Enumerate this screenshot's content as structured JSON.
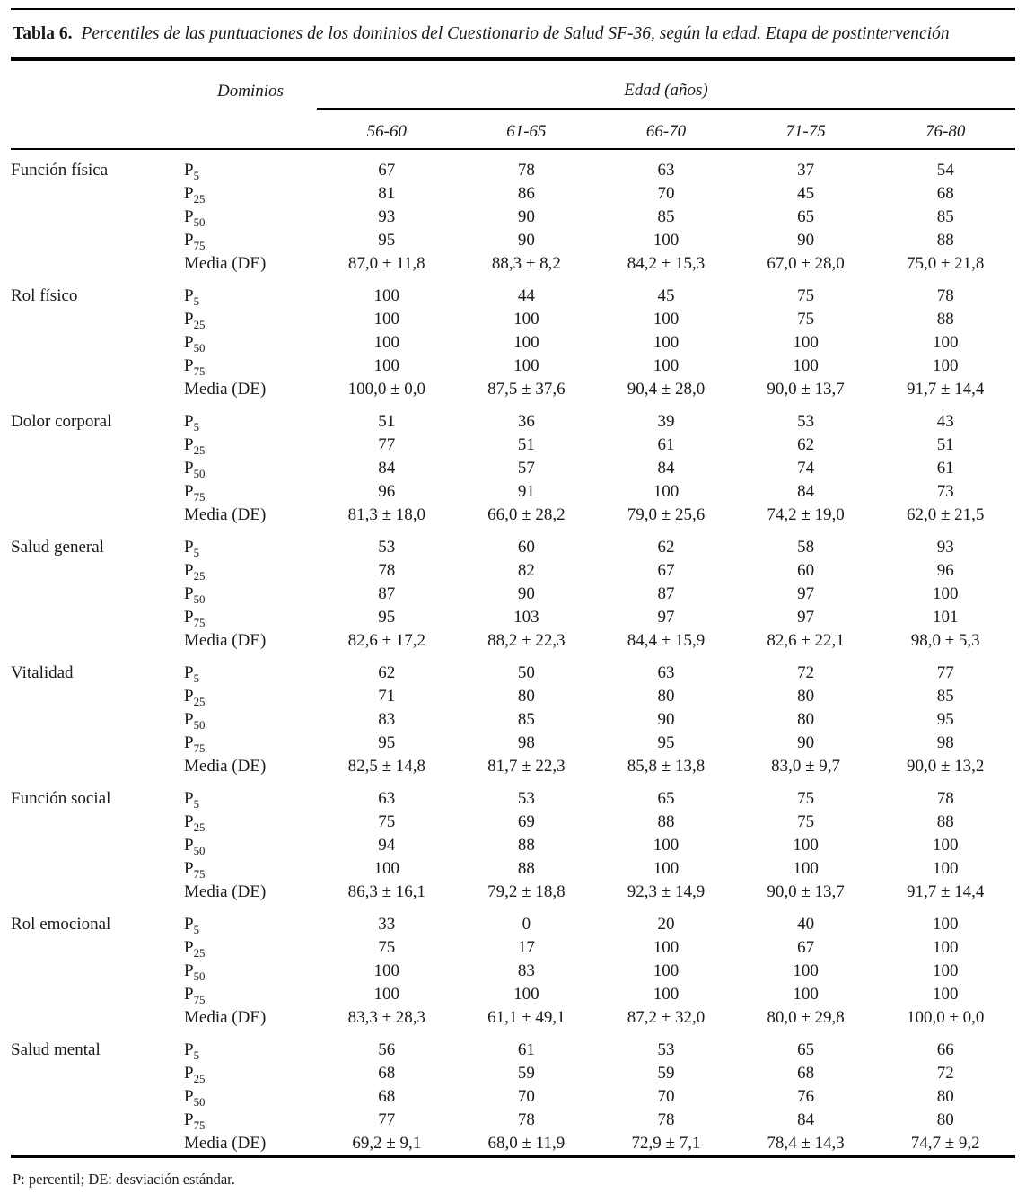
{
  "table": {
    "label": "Tabla 6.",
    "title": "Percentiles de las puntuaciones de los dominios del Cuestionario de Salud SF-36, según la edad. Etapa de postintervención",
    "col_group_left": "Dominios",
    "col_group_right": "Edad (años)",
    "age_columns": [
      "56-60",
      "61-65",
      "66-70",
      "71-75",
      "76-80"
    ]
  },
  "domains": [
    {
      "name": "Función física",
      "rows": [
        {
          "stat": {
            "base": "P",
            "sub": "5"
          },
          "values": [
            "67",
            "78",
            "63",
            "37",
            "54"
          ]
        },
        {
          "stat": {
            "base": "P",
            "sub": "25"
          },
          "values": [
            "81",
            "86",
            "70",
            "45",
            "68"
          ]
        },
        {
          "stat": {
            "base": "P",
            "sub": "50"
          },
          "values": [
            "93",
            "90",
            "85",
            "65",
            "85"
          ]
        },
        {
          "stat": {
            "base": "P",
            "sub": "75"
          },
          "values": [
            "95",
            "90",
            "100",
            "90",
            "88"
          ]
        },
        {
          "stat": {
            "base": "Media (DE)",
            "sub": ""
          },
          "values": [
            "87,0 ± 11,8",
            "88,3 ± 8,2",
            "84,2 ± 15,3",
            "67,0 ± 28,0",
            "75,0 ± 21,8"
          ]
        }
      ]
    },
    {
      "name": "Rol físico",
      "rows": [
        {
          "stat": {
            "base": "P",
            "sub": "5"
          },
          "values": [
            "100",
            "44",
            "45",
            "75",
            "78"
          ]
        },
        {
          "stat": {
            "base": "P",
            "sub": "25"
          },
          "values": [
            "100",
            "100",
            "100",
            "75",
            "88"
          ]
        },
        {
          "stat": {
            "base": "P",
            "sub": "50"
          },
          "values": [
            "100",
            "100",
            "100",
            "100",
            "100"
          ]
        },
        {
          "stat": {
            "base": "P",
            "sub": "75"
          },
          "values": [
            "100",
            "100",
            "100",
            "100",
            "100"
          ]
        },
        {
          "stat": {
            "base": "Media (DE)",
            "sub": ""
          },
          "values": [
            "100,0 ± 0,0",
            "87,5 ± 37,6",
            "90,4 ± 28,0",
            "90,0 ± 13,7",
            "91,7 ± 14,4"
          ]
        }
      ]
    },
    {
      "name": "Dolor corporal",
      "rows": [
        {
          "stat": {
            "base": "P",
            "sub": "5"
          },
          "values": [
            "51",
            "36",
            "39",
            "53",
            "43"
          ]
        },
        {
          "stat": {
            "base": "P",
            "sub": "25"
          },
          "values": [
            "77",
            "51",
            "61",
            "62",
            "51"
          ]
        },
        {
          "stat": {
            "base": "P",
            "sub": "50"
          },
          "values": [
            "84",
            "57",
            "84",
            "74",
            "61"
          ]
        },
        {
          "stat": {
            "base": "P",
            "sub": "75"
          },
          "values": [
            "96",
            "91",
            "100",
            "84",
            "73"
          ]
        },
        {
          "stat": {
            "base": "Media (DE)",
            "sub": ""
          },
          "values": [
            "81,3 ± 18,0",
            "66,0 ± 28,2",
            "79,0 ± 25,6",
            "74,2 ± 19,0",
            "62,0 ± 21,5"
          ]
        }
      ]
    },
    {
      "name": "Salud general",
      "rows": [
        {
          "stat": {
            "base": "P",
            "sub": "5"
          },
          "values": [
            "53",
            "60",
            "62",
            "58",
            "93"
          ]
        },
        {
          "stat": {
            "base": "P",
            "sub": "25"
          },
          "values": [
            "78",
            "82",
            "67",
            "60",
            "96"
          ]
        },
        {
          "stat": {
            "base": "P",
            "sub": "50"
          },
          "values": [
            "87",
            "90",
            "87",
            "97",
            "100"
          ]
        },
        {
          "stat": {
            "base": "P",
            "sub": "75"
          },
          "values": [
            "95",
            "103",
            "97",
            "97",
            "101"
          ]
        },
        {
          "stat": {
            "base": "Media (DE)",
            "sub": ""
          },
          "values": [
            "82,6 ± 17,2",
            "88,2 ± 22,3",
            "84,4 ± 15,9",
            "82,6 ± 22,1",
            "98,0 ± 5,3"
          ]
        }
      ]
    },
    {
      "name": "Vitalidad",
      "rows": [
        {
          "stat": {
            "base": "P",
            "sub": "5"
          },
          "values": [
            "62",
            "50",
            "63",
            "72",
            "77"
          ]
        },
        {
          "stat": {
            "base": "P",
            "sub": "25"
          },
          "values": [
            "71",
            "80",
            "80",
            "80",
            "85"
          ]
        },
        {
          "stat": {
            "base": "P",
            "sub": "50"
          },
          "values": [
            "83",
            "85",
            "90",
            "80",
            "95"
          ]
        },
        {
          "stat": {
            "base": "P",
            "sub": "75"
          },
          "values": [
            "95",
            "98",
            "95",
            "90",
            "98"
          ]
        },
        {
          "stat": {
            "base": "Media (DE)",
            "sub": ""
          },
          "values": [
            "82,5 ± 14,8",
            "81,7 ± 22,3",
            "85,8 ± 13,8",
            "83,0 ± 9,7",
            "90,0 ± 13,2"
          ]
        }
      ]
    },
    {
      "name": "Función social",
      "rows": [
        {
          "stat": {
            "base": "P",
            "sub": "5"
          },
          "values": [
            "63",
            "53",
            "65",
            "75",
            "78"
          ]
        },
        {
          "stat": {
            "base": "P",
            "sub": "25"
          },
          "values": [
            "75",
            "69",
            "88",
            "75",
            "88"
          ]
        },
        {
          "stat": {
            "base": "P",
            "sub": "50"
          },
          "values": [
            "94",
            "88",
            "100",
            "100",
            "100"
          ]
        },
        {
          "stat": {
            "base": "P",
            "sub": "75"
          },
          "values": [
            "100",
            "88",
            "100",
            "100",
            "100"
          ]
        },
        {
          "stat": {
            "base": "Media (DE)",
            "sub": ""
          },
          "values": [
            "86,3 ± 16,1",
            "79,2 ± 18,8",
            "92,3 ± 14,9",
            "90,0 ± 13,7",
            "91,7 ± 14,4"
          ]
        }
      ]
    },
    {
      "name": "Rol emocional",
      "rows": [
        {
          "stat": {
            "base": "P",
            "sub": "5"
          },
          "values": [
            "33",
            "0",
            "20",
            "40",
            "100"
          ]
        },
        {
          "stat": {
            "base": "P",
            "sub": "25"
          },
          "values": [
            "75",
            "17",
            "100",
            "67",
            "100"
          ]
        },
        {
          "stat": {
            "base": "P",
            "sub": "50"
          },
          "values": [
            "100",
            "83",
            "100",
            "100",
            "100"
          ]
        },
        {
          "stat": {
            "base": "P",
            "sub": "75"
          },
          "values": [
            "100",
            "100",
            "100",
            "100",
            "100"
          ]
        },
        {
          "stat": {
            "base": "Media (DE)",
            "sub": ""
          },
          "values": [
            "83,3 ± 28,3",
            "61,1 ± 49,1",
            "87,2 ± 32,0",
            "80,0 ± 29,8",
            "100,0 ± 0,0"
          ]
        }
      ]
    },
    {
      "name": "Salud mental",
      "rows": [
        {
          "stat": {
            "base": "P",
            "sub": "5"
          },
          "values": [
            "56",
            "61",
            "53",
            "65",
            "66"
          ]
        },
        {
          "stat": {
            "base": "P",
            "sub": "25"
          },
          "values": [
            "68",
            "59",
            "59",
            "68",
            "72"
          ]
        },
        {
          "stat": {
            "base": "P",
            "sub": "50"
          },
          "values": [
            "68",
            "70",
            "70",
            "76",
            "80"
          ]
        },
        {
          "stat": {
            "base": "P",
            "sub": "75"
          },
          "values": [
            "77",
            "78",
            "78",
            "84",
            "80"
          ]
        },
        {
          "stat": {
            "base": "Media (DE)",
            "sub": ""
          },
          "values": [
            "69,2 ± 9,1",
            "68,0 ± 11,9",
            "72,9 ± 7,1",
            "78,4 ± 14,3",
            "74,7 ± 9,2"
          ]
        }
      ]
    }
  ],
  "footnote": "P: percentil; DE: desviación estándar.",
  "colors": {
    "text": "#1a1a1a",
    "rule": "#000000",
    "background": "#ffffff"
  }
}
